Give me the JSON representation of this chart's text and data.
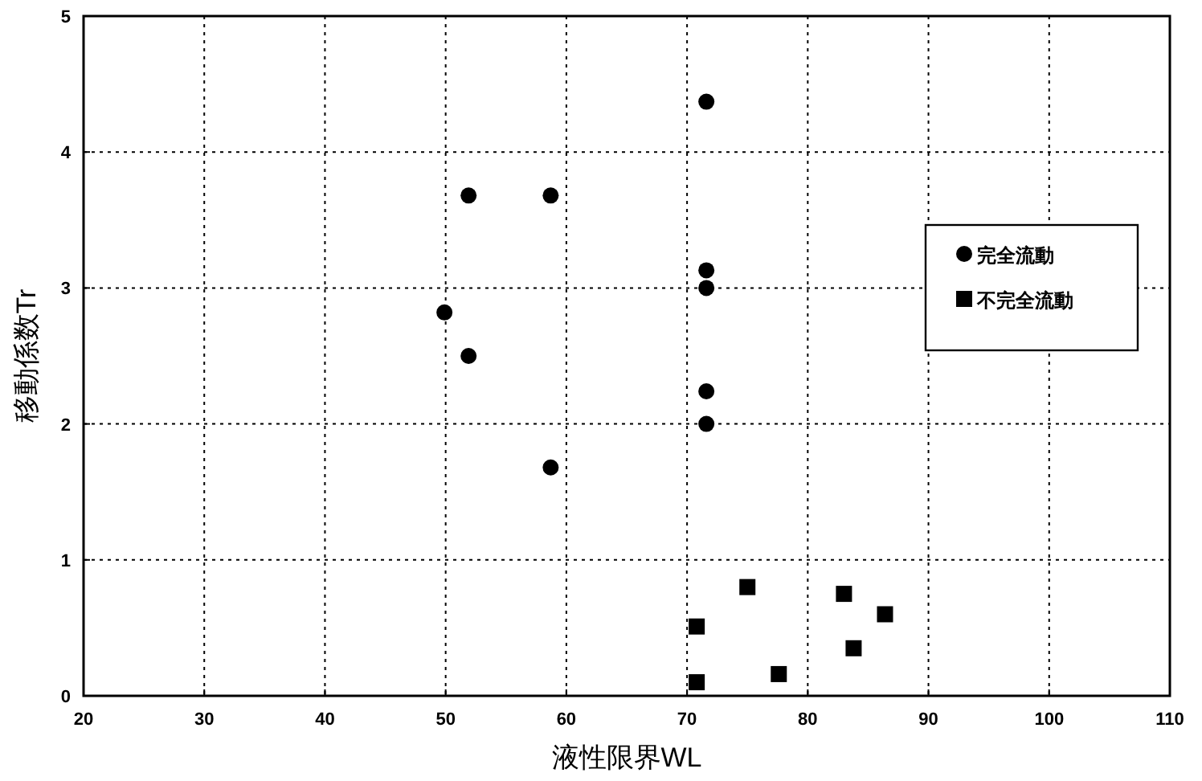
{
  "chart_data": {
    "type": "scatter",
    "xlabel": "液性限界WL",
    "ylabel": "移動係数Tr",
    "xlim": [
      20,
      110
    ],
    "xticks": [
      20,
      30,
      40,
      50,
      60,
      70,
      80,
      90,
      100,
      110
    ],
    "ylim": [
      0,
      5
    ],
    "yticks": [
      0,
      1,
      2,
      3,
      4,
      5
    ],
    "grid": true,
    "legend": "right",
    "series": [
      {
        "name": "完全流動",
        "color": "#000000",
        "marker": "circle",
        "x": [
          49.9,
          51.9,
          51.9,
          58.7,
          58.7,
          71.6,
          71.6,
          71.6,
          71.6,
          71.6
        ],
        "values": [
          2.82,
          3.68,
          2.5,
          3.68,
          1.68,
          4.37,
          3.13,
          3.0,
          2.24,
          2.0
        ]
      },
      {
        "name": "不完全流動",
        "color": "#000000",
        "marker": "square",
        "x": [
          70.8,
          70.8,
          75.0,
          77.6,
          83.0,
          86.4,
          83.8
        ],
        "values": [
          0.51,
          0.1,
          0.8,
          0.16,
          0.75,
          0.6,
          0.35
        ]
      }
    ]
  }
}
